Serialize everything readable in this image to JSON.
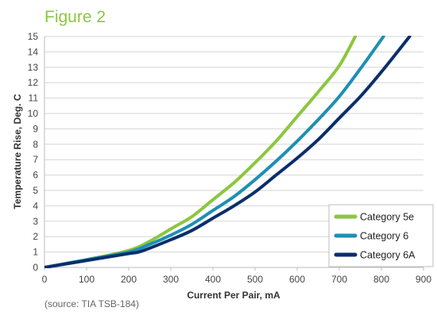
{
  "title": "Figure 2",
  "source": "(source: TIA TSB-184)",
  "colors": {
    "title": "#8cc63f",
    "grid": "#d6d6d6",
    "axis": "#bdbdbd"
  },
  "chart_data": {
    "type": "line",
    "xlabel": "Current Per Pair, mA",
    "ylabel": "Temperature Rise, Deg. C",
    "xlim": [
      0,
      900
    ],
    "ylim": [
      0,
      15
    ],
    "xticks": [
      0,
      100,
      200,
      300,
      400,
      500,
      600,
      700,
      800,
      900
    ],
    "yticks": [
      0,
      1,
      2,
      3,
      4,
      5,
      6,
      7,
      8,
      9,
      10,
      11,
      12,
      13,
      14,
      15
    ],
    "grid": "horizontal",
    "legend_position": "bottom-right",
    "series": [
      {
        "name": "Category 5e",
        "color": "#8cc63f",
        "points": [
          [
            0,
            0
          ],
          [
            100,
            0.5
          ],
          [
            200,
            1.1
          ],
          [
            250,
            1.7
          ],
          [
            300,
            2.5
          ],
          [
            350,
            3.3
          ],
          [
            400,
            4.4
          ],
          [
            450,
            5.5
          ],
          [
            500,
            6.8
          ],
          [
            550,
            8.2
          ],
          [
            600,
            9.8
          ],
          [
            650,
            11.4
          ],
          [
            700,
            13.1
          ],
          [
            738,
            15
          ]
        ]
      },
      {
        "name": "Category 6",
        "color": "#1e8fb3",
        "points": [
          [
            0,
            0
          ],
          [
            100,
            0.5
          ],
          [
            200,
            1.0
          ],
          [
            250,
            1.5
          ],
          [
            300,
            2.1
          ],
          [
            350,
            2.8
          ],
          [
            400,
            3.7
          ],
          [
            450,
            4.6
          ],
          [
            500,
            5.7
          ],
          [
            550,
            6.9
          ],
          [
            600,
            8.2
          ],
          [
            650,
            9.6
          ],
          [
            700,
            11.1
          ],
          [
            750,
            12.9
          ],
          [
            805,
            15
          ]
        ]
      },
      {
        "name": "Category 6A",
        "color": "#0b2e6b",
        "points": [
          [
            0,
            0
          ],
          [
            100,
            0.45
          ],
          [
            200,
            0.9
          ],
          [
            230,
            1.05
          ],
          [
            300,
            1.8
          ],
          [
            350,
            2.4
          ],
          [
            400,
            3.2
          ],
          [
            450,
            4.0
          ],
          [
            500,
            4.9
          ],
          [
            550,
            6.0
          ],
          [
            600,
            7.1
          ],
          [
            650,
            8.3
          ],
          [
            700,
            9.7
          ],
          [
            750,
            11.1
          ],
          [
            800,
            12.7
          ],
          [
            867,
            15
          ]
        ]
      }
    ]
  }
}
